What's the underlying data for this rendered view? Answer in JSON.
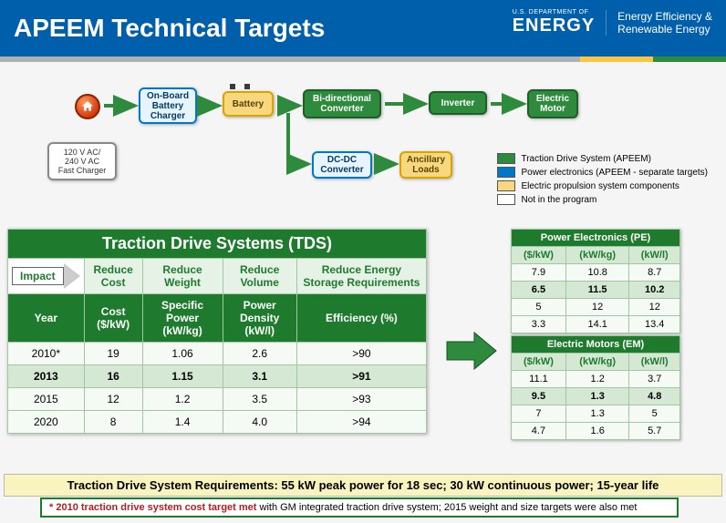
{
  "header": {
    "title": "APEEM Technical Targets",
    "dept_small": "U.S. DEPARTMENT OF",
    "dept_big": "ENERGY",
    "subline1": "Energy Efficiency &",
    "subline2": "Renewable Energy"
  },
  "flow": {
    "fast_charger": "120 V AC/\n240 V AC\nFast Charger",
    "obc": "On-Board\nBattery\nCharger",
    "battery": "Battery",
    "bidi": "Bi-directional\nConverter",
    "dcdc": "DC-DC\nConverter",
    "inverter": "Inverter",
    "motor": "Electric\nMotor",
    "ancillary": "Ancillary\nLoads"
  },
  "legend": {
    "green": "Traction Drive System (APEEM)",
    "blue": "Power electronics (APEEM - separate targets)",
    "yellow": "Electric propulsion system components",
    "white": "Not in the program",
    "green_color": "#2e8b3e",
    "blue_color": "#0077c8",
    "yellow_color": "#f9d77e",
    "white_color": "#ffffff"
  },
  "tds": {
    "caption": "Traction Drive Systems (TDS)",
    "impact_label": "Impact",
    "impact_cols": [
      "Reduce Cost",
      "Reduce Weight",
      "Reduce Volume",
      "Reduce Energy Storage Requirements"
    ],
    "cols": [
      "Year",
      "Cost ($/kW)",
      "Specific Power (kW/kg)",
      "Power Density (kW/l)",
      "Efficiency (%)"
    ],
    "rows": [
      {
        "y": "2010*",
        "c": "19",
        "sp": "1.06",
        "pd": "2.6",
        "e": ">90",
        "hl": false
      },
      {
        "y": "2013",
        "c": "16",
        "sp": "1.15",
        "pd": "3.1",
        "e": ">91",
        "hl": true
      },
      {
        "y": "2015",
        "c": "12",
        "sp": "1.2",
        "pd": "3.5",
        "e": ">93",
        "hl": false
      },
      {
        "y": "2020",
        "c": "8",
        "sp": "1.4",
        "pd": "4.0",
        "e": ">94",
        "hl": false
      }
    ]
  },
  "pe": {
    "caption": "Power Electronics (PE)",
    "cols": [
      "($/kW)",
      "(kW/kg)",
      "(kW/l)"
    ],
    "rows": [
      {
        "a": "7.9",
        "b": "10.8",
        "c": "8.7",
        "hl": false
      },
      {
        "a": "6.5",
        "b": "11.5",
        "c": "10.2",
        "hl": true
      },
      {
        "a": "5",
        "b": "12",
        "c": "12",
        "hl": false
      },
      {
        "a": "3.3",
        "b": "14.1",
        "c": "13.4",
        "hl": false
      }
    ]
  },
  "em": {
    "caption": "Electric Motors (EM)",
    "cols": [
      "($/kW)",
      "(kW/kg)",
      "(kW/l)"
    ],
    "rows": [
      {
        "a": "11.1",
        "b": "1.2",
        "c": "3.7",
        "hl": false
      },
      {
        "a": "9.5",
        "b": "1.3",
        "c": "4.8",
        "hl": true
      },
      {
        "a": "7",
        "b": "1.3",
        "c": "5",
        "hl": false
      },
      {
        "a": "4.7",
        "b": "1.6",
        "c": "5.7",
        "hl": false
      }
    ]
  },
  "req_bar": "Traction Drive System Requirements:  55 kW peak power for 18 sec; 30 kW continuous power; 15-year life",
  "footnote": {
    "star": "*",
    "red": "2010 traction drive system cost target met",
    "rest": " with GM integrated traction drive system; 2015 weight and size targets were also met"
  }
}
